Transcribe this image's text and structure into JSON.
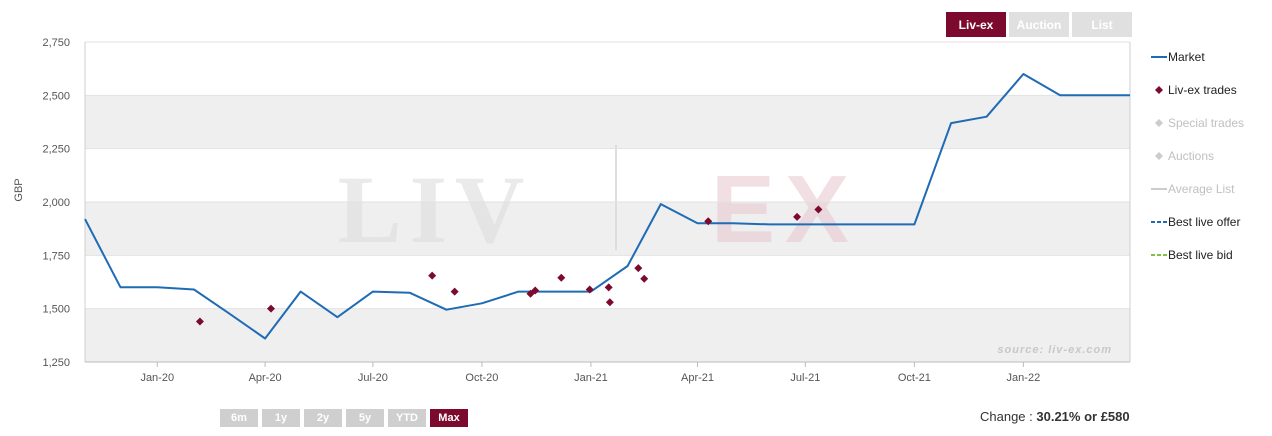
{
  "tabs": [
    {
      "label": "Liv-ex",
      "active": true
    },
    {
      "label": "Auction",
      "active": false
    },
    {
      "label": "List",
      "active": false
    }
  ],
  "ranges": [
    {
      "label": "6m",
      "active": false
    },
    {
      "label": "1y",
      "active": false
    },
    {
      "label": "2y",
      "active": false
    },
    {
      "label": "5y",
      "active": false
    },
    {
      "label": "YTD",
      "active": false
    },
    {
      "label": "Max",
      "active": true
    }
  ],
  "change": {
    "prefix": "Change : ",
    "value": "30.21% or £580"
  },
  "legend": [
    {
      "label": "Market",
      "symbol": "line",
      "color": "#1f6bb5",
      "enabled": true
    },
    {
      "label": "Liv-ex trades",
      "symbol": "diamond",
      "color": "#7b0a2e",
      "enabled": true
    },
    {
      "label": "Special trades",
      "symbol": "diamond",
      "color": "#cccccc",
      "enabled": false
    },
    {
      "label": "Auctions",
      "symbol": "diamond",
      "color": "#cccccc",
      "enabled": false
    },
    {
      "label": "Average List",
      "symbol": "line",
      "color": "#cccccc",
      "enabled": false
    },
    {
      "label": "Best live offer",
      "symbol": "dash",
      "color": "#1f6bb5",
      "enabled": true
    },
    {
      "label": "Best live bid",
      "symbol": "dash",
      "color": "#7fc241",
      "enabled": true
    }
  ],
  "watermark": {
    "left": "LIV",
    "right": "EX",
    "source": "source: liv-ex.com"
  },
  "chart_data": {
    "type": "line",
    "ylabel": "GBP",
    "ylim": [
      1250,
      2750
    ],
    "yticks": [
      1250,
      1500,
      1750,
      2000,
      2250,
      2500,
      2750
    ],
    "ytick_labels": [
      "1,250",
      "1,500",
      "1,750",
      "2,000",
      "2,250",
      "2,500",
      "2,750"
    ],
    "xlim": [
      "2019-11-01",
      "2022-04-01"
    ],
    "xticks": [
      {
        "date": "2020-01-01",
        "label": "Jan-20"
      },
      {
        "date": "2020-04-01",
        "label": "Apr-20"
      },
      {
        "date": "2020-07-01",
        "label": "Jul-20"
      },
      {
        "date": "2020-10-01",
        "label": "Oct-20"
      },
      {
        "date": "2021-01-01",
        "label": "Jan-21"
      },
      {
        "date": "2021-04-01",
        "label": "Apr-21"
      },
      {
        "date": "2021-07-01",
        "label": "Jul-21"
      },
      {
        "date": "2021-10-01",
        "label": "Oct-21"
      },
      {
        "date": "2022-01-01",
        "label": "Jan-22"
      }
    ],
    "series": [
      {
        "name": "Market",
        "type": "line",
        "color": "#1f6bb5",
        "points": [
          [
            "2019-11-01",
            1920
          ],
          [
            "2019-12-01",
            1600
          ],
          [
            "2020-01-01",
            1600
          ],
          [
            "2020-02-01",
            1590
          ],
          [
            "2020-03-01",
            1480
          ],
          [
            "2020-04-01",
            1360
          ],
          [
            "2020-05-01",
            1580
          ],
          [
            "2020-06-01",
            1460
          ],
          [
            "2020-07-01",
            1580
          ],
          [
            "2020-08-01",
            1575
          ],
          [
            "2020-09-01",
            1495
          ],
          [
            "2020-10-01",
            1525
          ],
          [
            "2020-11-01",
            1580
          ],
          [
            "2020-12-01",
            1580
          ],
          [
            "2021-01-01",
            1580
          ],
          [
            "2021-02-01",
            1700
          ],
          [
            "2021-03-01",
            1990
          ],
          [
            "2021-04-01",
            1900
          ],
          [
            "2021-05-01",
            1900
          ],
          [
            "2021-06-01",
            1895
          ],
          [
            "2021-07-01",
            1895
          ],
          [
            "2021-08-01",
            1895
          ],
          [
            "2021-09-01",
            1895
          ],
          [
            "2021-10-01",
            1895
          ],
          [
            "2021-11-01",
            2370
          ],
          [
            "2021-12-01",
            2400
          ],
          [
            "2022-01-01",
            2600
          ],
          [
            "2022-02-01",
            2500
          ],
          [
            "2022-03-01",
            2500
          ],
          [
            "2022-04-01",
            2500
          ]
        ]
      },
      {
        "name": "Liv-ex trades",
        "type": "scatter",
        "color": "#7b0a2e",
        "points": [
          [
            "2020-02-06",
            1440
          ],
          [
            "2020-04-06",
            1500
          ],
          [
            "2020-08-20",
            1655
          ],
          [
            "2020-09-08",
            1580
          ],
          [
            "2020-11-11",
            1570
          ],
          [
            "2020-11-15",
            1585
          ],
          [
            "2020-12-07",
            1645
          ],
          [
            "2020-12-31",
            1590
          ],
          [
            "2021-01-16",
            1600
          ],
          [
            "2021-01-17",
            1530
          ],
          [
            "2021-02-10",
            1690
          ],
          [
            "2021-02-15",
            1640
          ],
          [
            "2021-04-10",
            1910
          ],
          [
            "2021-06-24",
            1930
          ],
          [
            "2021-07-12",
            1965
          ]
        ]
      }
    ]
  }
}
